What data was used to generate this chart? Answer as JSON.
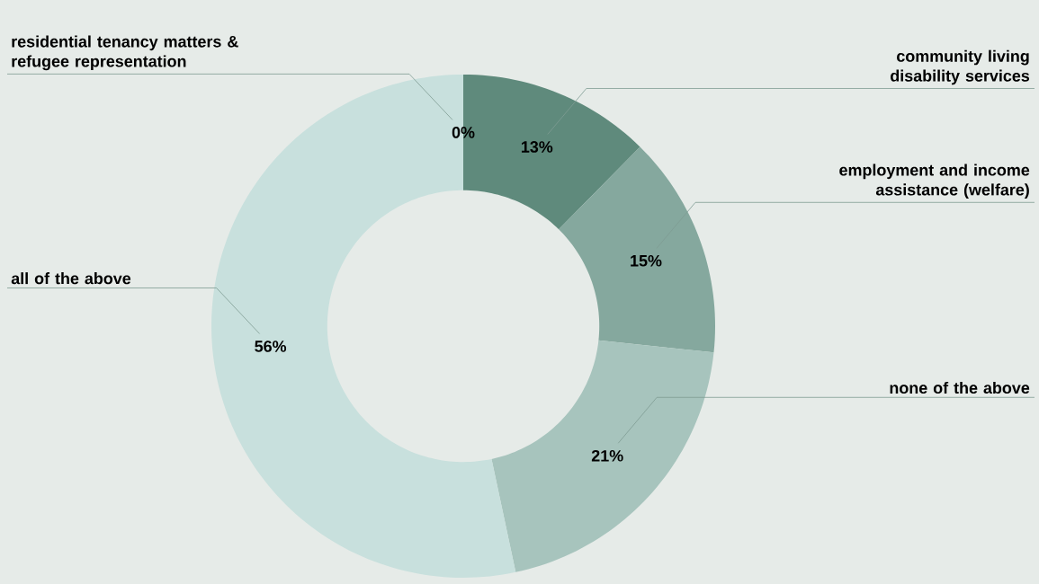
{
  "chart_data": {
    "type": "donut",
    "categories": [
      "community living disability services",
      "employment and income assistance (welfare)",
      "none of the above",
      "all of the above",
      "residential tenancy matters & refugee representation"
    ],
    "values": [
      13,
      15,
      21,
      56,
      0
    ],
    "value_labels": [
      "13%",
      "15%",
      "21%",
      "56%",
      "0%"
    ],
    "colors": [
      "#5f8a7c",
      "#85a89e",
      "#a7c4bd",
      "#c8e0dd",
      "#ffffff"
    ]
  }
}
